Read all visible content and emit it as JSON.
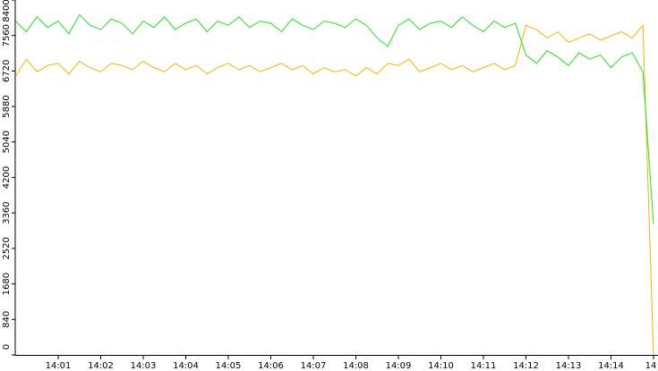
{
  "chart_data": {
    "type": "line",
    "categories": [
      null,
      null,
      null,
      null,
      "14:01",
      null,
      null,
      null,
      "14:02",
      null,
      null,
      null,
      "14:03",
      null,
      null,
      null,
      "14:04",
      null,
      null,
      null,
      "14:05",
      null,
      null,
      null,
      "14:06",
      null,
      null,
      null,
      "14:07",
      null,
      null,
      null,
      "14:08",
      null,
      null,
      null,
      "14:09",
      null,
      null,
      null,
      "14:10",
      null,
      null,
      null,
      "14:11",
      null,
      null,
      null,
      "14:12",
      null,
      null,
      null,
      "14:13",
      null,
      null,
      null,
      "14:14",
      null,
      null,
      null,
      "14"
    ],
    "series": [
      {
        "color": "#22dd22",
        "values": [
          7900,
          7650,
          8000,
          7750,
          7900,
          7600,
          8050,
          7800,
          7700,
          7950,
          7850,
          7600,
          7900,
          7750,
          8000,
          7700,
          7850,
          7950,
          7650,
          7900,
          7800,
          8000,
          7750,
          7900,
          7850,
          7650,
          7950,
          7800,
          7700,
          7900,
          7850,
          7750,
          7950,
          7800,
          7500,
          7300,
          7800,
          7950,
          7700,
          7850,
          7900,
          7750,
          8000,
          7800,
          7650,
          7900,
          7750,
          7850,
          7100,
          6900,
          7200,
          7050,
          6850,
          7150,
          7000,
          7100,
          6800,
          7050,
          7150,
          6700,
          3100
        ]
      },
      {
        "color": "#f0b400",
        "values": [
          6600,
          7000,
          6700,
          6850,
          6900,
          6650,
          6950,
          6800,
          6700,
          6900,
          6850,
          6750,
          6950,
          6800,
          6700,
          6900,
          6750,
          6850,
          6650,
          6800,
          6900,
          6750,
          6850,
          6700,
          6800,
          6900,
          6750,
          6850,
          6650,
          6800,
          6700,
          6750,
          6600,
          6800,
          6650,
          6900,
          6850,
          7000,
          6700,
          6800,
          6900,
          6750,
          6850,
          6700,
          6800,
          6900,
          6750,
          6850,
          7800,
          7700,
          7500,
          7650,
          7400,
          7500,
          7600,
          7450,
          7550,
          7650,
          7500,
          7800,
          0
        ]
      }
    ],
    "ylim": [
      0,
      8400
    ],
    "yticks": [
      0,
      840,
      1680,
      2520,
      3360,
      4200,
      5040,
      5880,
      6720,
      7560,
      8400
    ]
  }
}
